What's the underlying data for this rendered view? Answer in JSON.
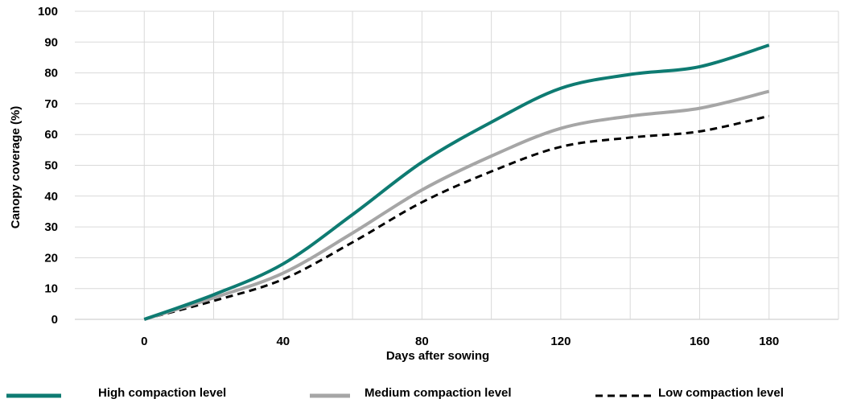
{
  "chart_data": {
    "type": "line",
    "title": "",
    "xlabel": "Days after sowing",
    "ylabel": "Canopy coverage (%)",
    "xlim": [
      -20,
      200
    ],
    "ylim": [
      0,
      100
    ],
    "x_ticks": [
      "0",
      "40",
      "80",
      "120",
      "160",
      "180"
    ],
    "x_tick_values": [
      0,
      40,
      80,
      120,
      160,
      180
    ],
    "y_ticks": [
      "0",
      "10",
      "20",
      "30",
      "40",
      "50",
      "60",
      "70",
      "80",
      "90",
      "100"
    ],
    "grid": true,
    "legend_position": "bottom",
    "series": [
      {
        "name": "High compaction level",
        "color": "#0e7b72",
        "style": "solid",
        "x": [
          0,
          20,
          40,
          60,
          80,
          100,
          120,
          140,
          160,
          180
        ],
        "y": [
          0,
          8,
          18,
          34,
          51,
          64,
          75,
          79.5,
          82,
          89
        ]
      },
      {
        "name": "Medium compaction level",
        "color": "#a6a6a6",
        "style": "solid",
        "x": [
          0,
          20,
          40,
          60,
          80,
          100,
          120,
          140,
          160,
          180
        ],
        "y": [
          0,
          7,
          15,
          28,
          42,
          53,
          62,
          66,
          68.5,
          74
        ]
      },
      {
        "name": "Low compaction level",
        "color": "#000000",
        "style": "dashed",
        "x": [
          0,
          20,
          40,
          60,
          80,
          100,
          120,
          140,
          160,
          180
        ],
        "y": [
          0,
          6,
          13,
          25,
          38,
          48,
          56,
          59,
          61,
          66
        ]
      }
    ]
  }
}
